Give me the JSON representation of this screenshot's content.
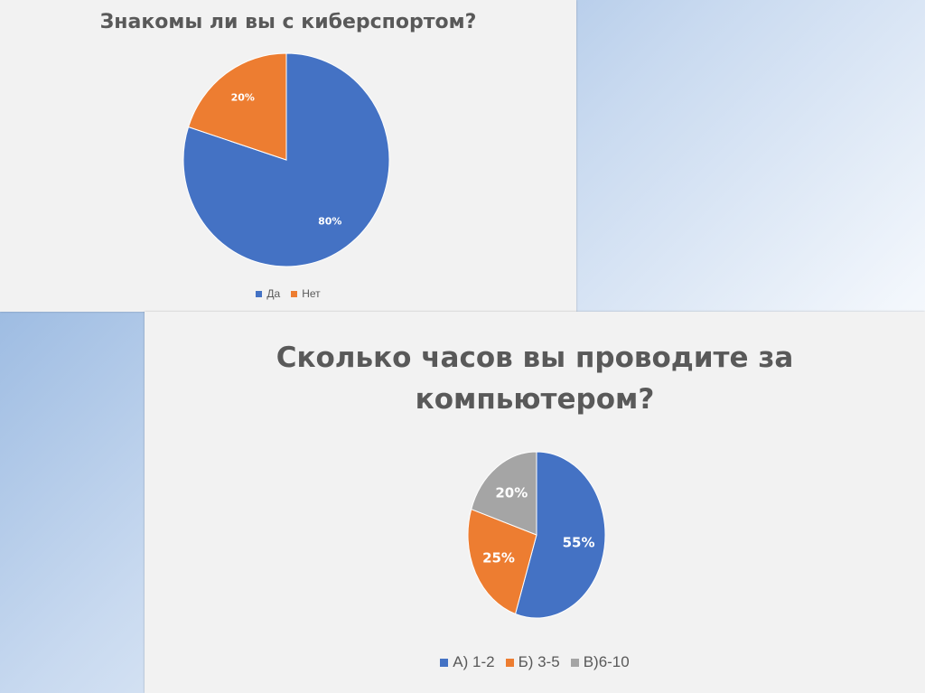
{
  "chart_data": [
    {
      "type": "pie",
      "title": "Знакомы ли вы с киберспортом?",
      "categories": [
        "Да",
        "Нет"
      ],
      "values": [
        80,
        20
      ],
      "data_labels": [
        "80%",
        "20%"
      ],
      "colors": [
        "#4472c4",
        "#ed7d31"
      ],
      "legend": "bottom"
    },
    {
      "type": "pie",
      "title": "Сколько часов вы проводите за компьютером?",
      "title_lines": [
        "Сколько часов вы проводите за",
        "компьютером?"
      ],
      "categories": [
        "А) 1-2",
        "Б) 3-5",
        "В)6-10"
      ],
      "values": [
        55,
        25,
        20
      ],
      "data_labels": [
        "55%",
        "25%",
        "20%"
      ],
      "colors": [
        "#4472c4",
        "#ed7d31",
        "#a5a5a5"
      ],
      "legend": "bottom"
    }
  ]
}
